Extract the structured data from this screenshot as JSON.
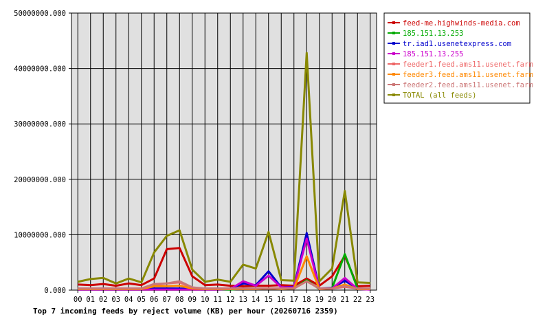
{
  "chart_data": {
    "type": "line",
    "title": "Top 7 incoming feeds by reject volume (KB) per hour (20260716 2359)",
    "xlabel": "",
    "ylabel": "",
    "categories": [
      "00",
      "01",
      "02",
      "03",
      "04",
      "05",
      "06",
      "07",
      "08",
      "09",
      "10",
      "11",
      "12",
      "13",
      "14",
      "15",
      "16",
      "17",
      "18",
      "19",
      "20",
      "21",
      "22",
      "23"
    ],
    "ylim": [
      0,
      50000000
    ],
    "yticks": [
      {
        "value": 0,
        "label": "0.000"
      },
      {
        "value": 10000000,
        "label": "10000000.000"
      },
      {
        "value": 20000000,
        "label": "20000000.000"
      },
      {
        "value": 30000000,
        "label": "30000000.000"
      },
      {
        "value": 40000000,
        "label": "40000000.000"
      },
      {
        "value": 50000000,
        "label": "50000000.000"
      }
    ],
    "grid": true,
    "legend_position": "right",
    "series": [
      {
        "name": "feed-me.highwinds-media.com",
        "color": "#cc0000",
        "values": [
          1000000,
          900000,
          1100000,
          800000,
          1200000,
          900000,
          2100000,
          7400000,
          7600000,
          2500000,
          900000,
          1000000,
          800000,
          700000,
          800000,
          800000,
          900000,
          800000,
          2100000,
          800000,
          2500000,
          6200000,
          700000,
          800000
        ]
      },
      {
        "name": "185.151.13.253",
        "color": "#00aa00",
        "values": [
          100000,
          100000,
          100000,
          100000,
          100000,
          100000,
          100000,
          100000,
          100000,
          100000,
          100000,
          100000,
          100000,
          300000,
          300000,
          300000,
          200000,
          300000,
          1800000,
          200000,
          400000,
          6500000,
          300000,
          200000
        ]
      },
      {
        "name": "tr.iad1.usenetexpress.com",
        "color": "#0000cc",
        "values": [
          200000,
          200000,
          300000,
          200000,
          200000,
          200000,
          300000,
          300000,
          300000,
          200000,
          200000,
          200000,
          300000,
          1200000,
          900000,
          3400000,
          500000,
          600000,
          10300000,
          300000,
          400000,
          1700000,
          300000,
          200000
        ]
      },
      {
        "name": "185.151.13.255",
        "color": "#cc00cc",
        "values": [
          100000,
          100000,
          100000,
          100000,
          100000,
          100000,
          100000,
          100000,
          100000,
          100000,
          100000,
          100000,
          200000,
          1600000,
          800000,
          2600000,
          500000,
          500000,
          9300000,
          200000,
          300000,
          2200000,
          200000,
          100000
        ]
      },
      {
        "name": "feeder1.feed.ams11.usenet.farm",
        "color": "#ee6666",
        "values": [
          300000,
          300000,
          300000,
          300000,
          300000,
          300000,
          900000,
          1200000,
          1400000,
          400000,
          300000,
          300000,
          300000,
          300000,
          300000,
          300000,
          300000,
          300000,
          1600000,
          300000,
          300000,
          600000,
          300000,
          300000
        ]
      },
      {
        "name": "feeder3.feed.ams11.usenet.farm",
        "color": "#ff8800",
        "values": [
          200000,
          200000,
          200000,
          200000,
          200000,
          200000,
          700000,
          700000,
          800000,
          300000,
          200000,
          200000,
          200000,
          200000,
          200000,
          300000,
          200000,
          300000,
          6100000,
          200000,
          300000,
          1000000,
          200000,
          200000
        ]
      },
      {
        "name": "feeder2.feed.ams11.usenet.farm",
        "color": "#cc7777",
        "values": [
          300000,
          300000,
          300000,
          300000,
          300000,
          300000,
          1100000,
          1200000,
          1600000,
          500000,
          300000,
          300000,
          300000,
          300000,
          300000,
          300000,
          300000,
          300000,
          1600000,
          300000,
          300000,
          700000,
          300000,
          300000
        ]
      },
      {
        "name": "TOTAL (all feeds)",
        "color": "#888800",
        "values": [
          1500000,
          2000000,
          2200000,
          1200000,
          2100000,
          1400000,
          6800000,
          9800000,
          10800000,
          3700000,
          1500000,
          1900000,
          1500000,
          4600000,
          3900000,
          10500000,
          1800000,
          1700000,
          42800000,
          1600000,
          3900000,
          17900000,
          1400000,
          1300000
        ]
      }
    ]
  }
}
